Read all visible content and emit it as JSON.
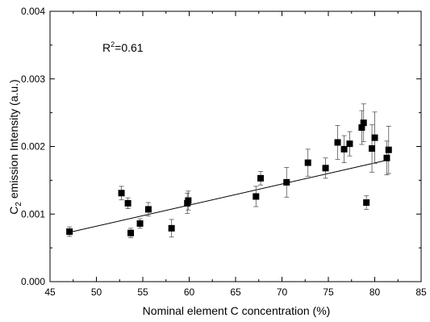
{
  "chart_data": {
    "type": "scatter",
    "xlabel": "Nominal element C concentration (%)",
    "ylabel": {
      "main": "C",
      "sub": "2",
      "rest": " emission  Intensity (a.u.)"
    },
    "annotation": {
      "main": "R",
      "sup": "2",
      "rest": "=0.61"
    },
    "xlim": [
      45,
      85
    ],
    "ylim": [
      0,
      0.004
    ],
    "x_ticks": [
      {
        "value": 45,
        "label": "45"
      },
      {
        "value": 50,
        "label": "50"
      },
      {
        "value": 55,
        "label": "55"
      },
      {
        "value": 60,
        "label": "60"
      },
      {
        "value": 65,
        "label": "65"
      },
      {
        "value": 70,
        "label": "70"
      },
      {
        "value": 75,
        "label": "75"
      },
      {
        "value": 80,
        "label": "80"
      },
      {
        "value": 85,
        "label": "85"
      }
    ],
    "y_ticks": [
      {
        "value": 0,
        "label": "0.000"
      },
      {
        "value": 0.001,
        "label": "0.001"
      },
      {
        "value": 0.002,
        "label": "0.002"
      },
      {
        "value": 0.003,
        "label": "0.003"
      },
      {
        "value": 0.004,
        "label": "0.004"
      }
    ],
    "grid": false,
    "points": [
      {
        "x": 47.1,
        "y": 0.00074,
        "err": 7e-05
      },
      {
        "x": 52.7,
        "y": 0.00131,
        "err": 0.0001
      },
      {
        "x": 53.4,
        "y": 0.00116,
        "err": 8e-05
      },
      {
        "x": 53.7,
        "y": 0.00072,
        "err": 7e-05
      },
      {
        "x": 54.7,
        "y": 0.00086,
        "err": 7e-05
      },
      {
        "x": 55.6,
        "y": 0.00107,
        "err": 0.0001
      },
      {
        "x": 58.1,
        "y": 0.00079,
        "err": 0.00013
      },
      {
        "x": 59.8,
        "y": 0.00116,
        "err": 0.00015
      },
      {
        "x": 59.9,
        "y": 0.0012,
        "err": 0.00014
      },
      {
        "x": 67.2,
        "y": 0.00126,
        "err": 0.00015
      },
      {
        "x": 67.7,
        "y": 0.00153,
        "err": 0.0001
      },
      {
        "x": 70.5,
        "y": 0.00147,
        "err": 0.00022
      },
      {
        "x": 72.8,
        "y": 0.00176,
        "err": 0.0002
      },
      {
        "x": 74.7,
        "y": 0.00168,
        "err": 0.00015
      },
      {
        "x": 76.0,
        "y": 0.00206,
        "err": 0.00025
      },
      {
        "x": 76.7,
        "y": 0.00196,
        "err": 0.0002
      },
      {
        "x": 77.3,
        "y": 0.00204,
        "err": 0.00018
      },
      {
        "x": 78.6,
        "y": 0.00228,
        "err": 0.00025
      },
      {
        "x": 78.8,
        "y": 0.00235,
        "err": 0.00028
      },
      {
        "x": 79.1,
        "y": 0.00117,
        "err": 0.0001
      },
      {
        "x": 79.7,
        "y": 0.00197,
        "err": 0.00035
      },
      {
        "x": 80.0,
        "y": 0.00213,
        "err": 0.00038
      },
      {
        "x": 81.3,
        "y": 0.00183,
        "err": 0.00025
      },
      {
        "x": 81.5,
        "y": 0.00195,
        "err": 0.00035
      }
    ],
    "fit_line": {
      "x": [
        47.1,
        81.4
      ],
      "y": [
        0.00073,
        0.0018
      ]
    }
  }
}
